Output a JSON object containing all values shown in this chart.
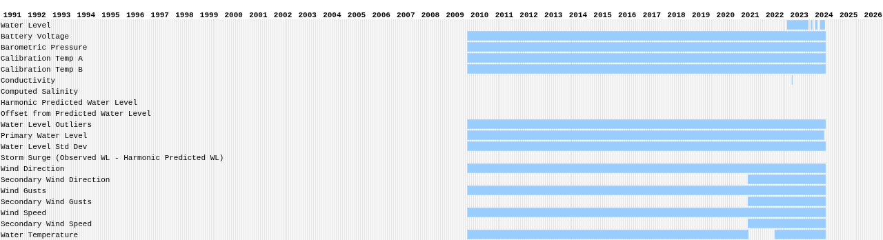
{
  "chart_data": {
    "type": "bar",
    "orientation": "horizontal",
    "grid": "x",
    "categories": [
      "Water Level",
      "Battery Voltage",
      "Barometric Pressure",
      "Calibration Temp A",
      "Calibration Temp B",
      "Conductivity",
      "Computed Salinity",
      "Harmonic Predicted Water Level",
      "Offset from Predicted Water Level",
      "Water Level Outliers",
      "Primary Water Level",
      "Water Level Std Dev",
      "Storm Surge (Observed WL - Harmonic Predicted WL)",
      "Wind Direction",
      "Secondary Wind Direction",
      "Wind Gusts",
      "Secondary Wind Gusts",
      "Wind Speed",
      "Secondary Wind Speed",
      "Water Temperature"
    ],
    "xlim": [
      1991,
      2026.9
    ],
    "xticks": [
      {
        "value": 1991.5,
        "label": "1991"
      },
      {
        "value": 1992.5,
        "label": "1992"
      },
      {
        "value": 1993.5,
        "label": "1993"
      },
      {
        "value": 1994.5,
        "label": "1994"
      },
      {
        "value": 1995.5,
        "label": "1995"
      },
      {
        "value": 1996.5,
        "label": "1996"
      },
      {
        "value": 1997.5,
        "label": "1997"
      },
      {
        "value": 1998.5,
        "label": "1998"
      },
      {
        "value": 1999.5,
        "label": "1999"
      },
      {
        "value": 2000.5,
        "label": "2000"
      },
      {
        "value": 2001.5,
        "label": "2001"
      },
      {
        "value": 2002.5,
        "label": "2002"
      },
      {
        "value": 2003.5,
        "label": "2003"
      },
      {
        "value": 2004.5,
        "label": "2004"
      },
      {
        "value": 2005.5,
        "label": "2005"
      },
      {
        "value": 2006.5,
        "label": "2006"
      },
      {
        "value": 2007.5,
        "label": "2007"
      },
      {
        "value": 2008.5,
        "label": "2008"
      },
      {
        "value": 2009.5,
        "label": "2009"
      },
      {
        "value": 2010.5,
        "label": "2010"
      },
      {
        "value": 2011.5,
        "label": "2011"
      },
      {
        "value": 2012.5,
        "label": "2012"
      },
      {
        "value": 2013.5,
        "label": "2013"
      },
      {
        "value": 2014.5,
        "label": "2014"
      },
      {
        "value": 2015.5,
        "label": "2015"
      },
      {
        "value": 2016.5,
        "label": "2016"
      },
      {
        "value": 2017.5,
        "label": "2017"
      },
      {
        "value": 2018.5,
        "label": "2018"
      },
      {
        "value": 2019.5,
        "label": "2019"
      },
      {
        "value": 2020.5,
        "label": "2020"
      },
      {
        "value": 2021.5,
        "label": "2021"
      },
      {
        "value": 2022.5,
        "label": "2022"
      },
      {
        "value": 2023.5,
        "label": "2023"
      },
      {
        "value": 2024.5,
        "label": "2024"
      },
      {
        "value": 2025.5,
        "label": "2025"
      },
      {
        "value": 2026.5,
        "label": "2026"
      }
    ],
    "series": [
      {
        "color": "#99ccff",
        "base": [
          2023.0,
          2010,
          2010,
          2010,
          2010,
          2023.19,
          null,
          null,
          null,
          2010,
          2010,
          2010,
          null,
          2010,
          2021.4,
          2010,
          2021.4,
          2010,
          2021.4,
          2010
        ],
        "values": [
          0.87,
          14.57,
          14.57,
          14.57,
          14.57,
          0.03,
          null,
          null,
          null,
          14.57,
          14.51,
          14.57,
          null,
          14.57,
          3.17,
          14.57,
          3.17,
          14.57,
          3.17,
          11.43
        ]
      },
      {
        "color": "#99ccff",
        "base": [
          2023.96,
          null,
          null,
          null,
          null,
          null,
          null,
          null,
          null,
          null,
          null,
          null,
          null,
          null,
          null,
          null,
          null,
          null,
          null,
          2022.49
        ],
        "values": [
          0.07,
          null,
          null,
          null,
          null,
          null,
          null,
          null,
          null,
          null,
          null,
          null,
          null,
          null,
          null,
          null,
          null,
          null,
          null,
          2.08
        ]
      },
      {
        "color": "#99ccff",
        "base": [
          2024.14,
          null,
          null,
          null,
          null,
          null,
          null,
          null,
          null,
          null,
          null,
          null,
          null,
          null,
          null,
          null,
          null,
          null,
          null,
          null
        ],
        "values": [
          0.09,
          null,
          null,
          null,
          null,
          null,
          null,
          null,
          null,
          null,
          null,
          null,
          null,
          null,
          null,
          null,
          null,
          null,
          null,
          null
        ]
      },
      {
        "color": "#99ccff",
        "base": [
          2024.34,
          null,
          null,
          null,
          null,
          null,
          null,
          null,
          null,
          null,
          null,
          null,
          null,
          null,
          null,
          null,
          null,
          null,
          null,
          null
        ],
        "values": [
          0.2,
          null,
          null,
          null,
          null,
          null,
          null,
          null,
          null,
          null,
          null,
          null,
          null,
          null,
          null,
          null,
          null,
          null,
          null,
          null
        ]
      }
    ]
  }
}
